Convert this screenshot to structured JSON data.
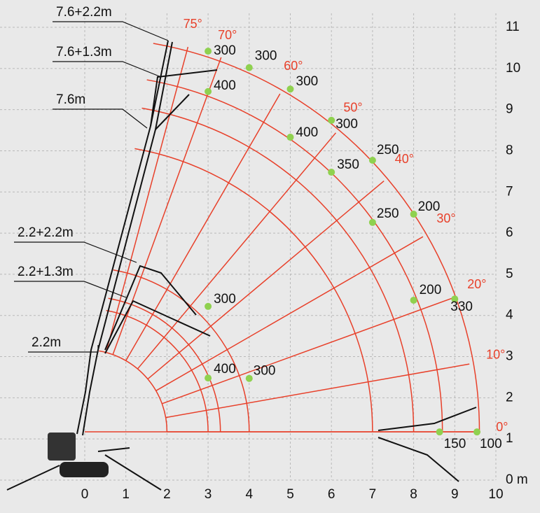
{
  "chart_data": {
    "type": "scatter",
    "xlim": [
      0,
      10
    ],
    "ylim": [
      0,
      11
    ],
    "xticks": [
      0,
      1,
      2,
      3,
      4,
      5,
      6,
      7,
      8,
      9,
      10
    ],
    "yticks": [
      {
        "value": 0,
        "label": "0 m"
      },
      1,
      2,
      3,
      4,
      5,
      6,
      7,
      8,
      9,
      10,
      11
    ],
    "grid": true,
    "angles": [
      {
        "value": 75,
        "label": "75°"
      },
      {
        "value": 70,
        "label": "70°"
      },
      {
        "value": 60,
        "label": "60°"
      },
      {
        "value": 50,
        "label": "50°"
      },
      {
        "value": 40,
        "label": "40°"
      },
      {
        "value": 30,
        "label": "30°"
      },
      {
        "value": 20,
        "label": "20°"
      },
      {
        "value": 10,
        "label": "10°"
      },
      {
        "value": 0,
        "label": "0°"
      }
    ],
    "booms": [
      "7.6+2.2m",
      "7.6+1.3m",
      "7.6m",
      "2.2+2.2m",
      "2.2+1.3m",
      "2.2m"
    ],
    "series": [
      {
        "color": "#8fd14f",
        "x": [
          3,
          4,
          5,
          3,
          6,
          5,
          7,
          6,
          8,
          7,
          9,
          8,
          3,
          3,
          4,
          8.63,
          9.54
        ],
        "values": [
          10.42,
          10.02,
          9.5,
          9.44,
          8.74,
          8.33,
          7.77,
          7.48,
          6.46,
          6.26,
          4.4,
          4.37,
          4.22,
          2.48,
          2.47,
          1.17,
          1.17
        ],
        "loads": [
          300,
          300,
          300,
          400,
          300,
          400,
          250,
          350,
          200,
          250,
          330,
          200,
          300,
          400,
          300,
          150,
          100
        ]
      }
    ]
  }
}
